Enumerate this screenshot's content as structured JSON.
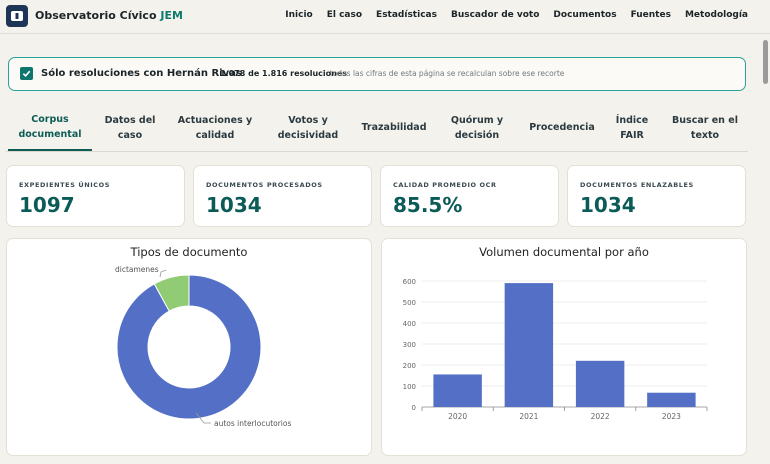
{
  "header": {
    "brand_name": "Observatorio Cívico",
    "brand_accent": "JEM",
    "nav": [
      "Inicio",
      "El caso",
      "Estadísticas",
      "Buscador de voto",
      "Documentos",
      "Fuentes",
      "Metodología"
    ]
  },
  "filter": {
    "checked": true,
    "label": "Sólo resoluciones con Hernán Rivas",
    "count_text": "1.078 de 1.816 resoluciones",
    "note": "· todas las cifras de esta página se recalculan sobre ese recorte"
  },
  "tabs": [
    {
      "line1": "Corpus",
      "line2": "documental",
      "active": true
    },
    {
      "line1": "Datos del",
      "line2": "caso"
    },
    {
      "line1": "Actuaciones y",
      "line2": "calidad"
    },
    {
      "line1": "Votos y",
      "line2": "decisividad"
    },
    {
      "line1": "Trazabilidad",
      "line2": ""
    },
    {
      "line1": "Quórum y",
      "line2": "decisión"
    },
    {
      "line1": "Procedencia",
      "line2": ""
    },
    {
      "line1": "Índice",
      "line2": "FAIR"
    },
    {
      "line1": "Buscar en el",
      "line2": "texto"
    }
  ],
  "kpis": [
    {
      "label": "EXPEDIENTES ÚNICOS",
      "value": "1097"
    },
    {
      "label": "DOCUMENTOS PROCESADOS",
      "value": "1034"
    },
    {
      "label": "CALIDAD PROMEDIO OCR",
      "value": "85.5%"
    },
    {
      "label": "DOCUMENTOS ENLAZABLES",
      "value": "1034"
    }
  ],
  "chart_data": [
    {
      "type": "pie",
      "title": "Tipos de documento",
      "labels": [
        "autos interlocutorios",
        "dictamenes"
      ],
      "values": [
        92,
        8
      ],
      "colors": [
        "#5470c6",
        "#91cc75"
      ]
    },
    {
      "type": "bar",
      "title": "Volumen documental por año",
      "categories": [
        "2020",
        "2021",
        "2022",
        "2023"
      ],
      "values": [
        155,
        590,
        220,
        68
      ],
      "ylim": [
        0,
        600
      ],
      "yticks": [
        0,
        100,
        200,
        300,
        400,
        500,
        600
      ],
      "grid": true,
      "color": "#5470c6"
    }
  ],
  "colors": {
    "accent": "#0b5b57",
    "filter_border": "#2aa19a",
    "background": "#f4f2ec"
  }
}
